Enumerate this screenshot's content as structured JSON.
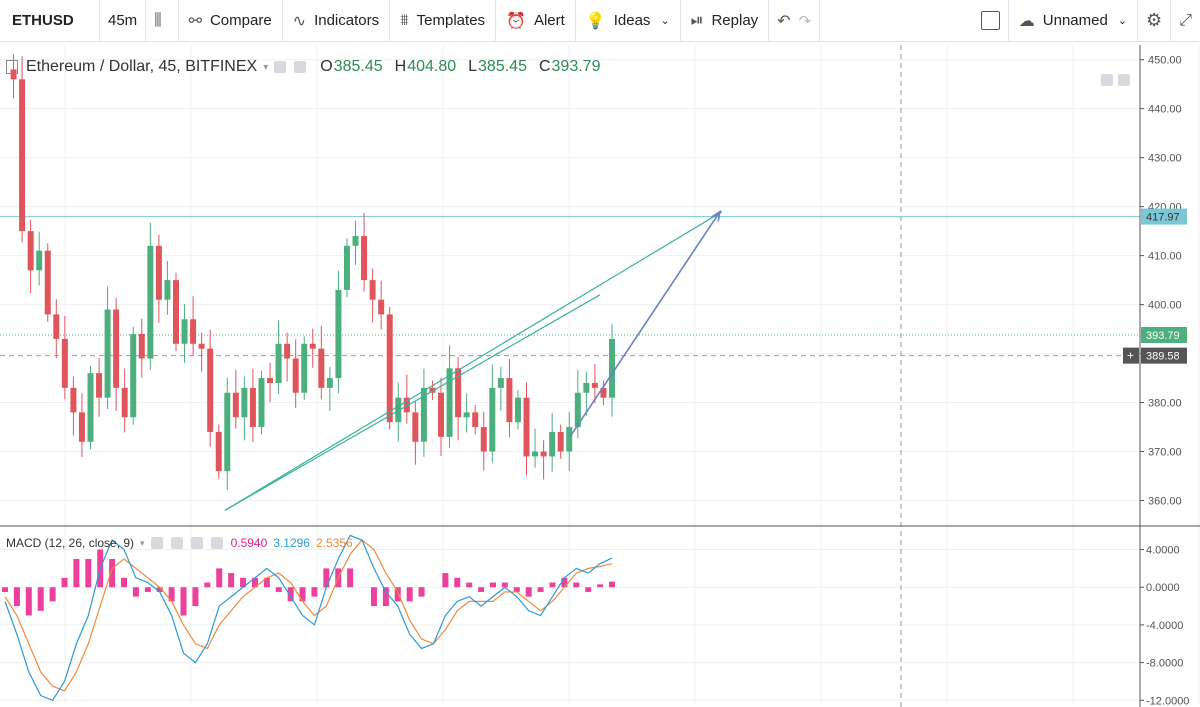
{
  "toolbar": {
    "symbol": "ETHUSD",
    "interval": "45m",
    "compare": "Compare",
    "indicators": "Indicators",
    "templates": "Templates",
    "alert": "Alert",
    "ideas": "Ideas",
    "replay": "Replay",
    "layout_name": "Unnamed"
  },
  "legend": {
    "title": "Ethereum / Dollar, 45, BITFINEX",
    "o_label": "O",
    "o": "385.45",
    "h_label": "H",
    "h": "404.80",
    "l_label": "L",
    "l": "385.45",
    "c_label": "C",
    "c": "393.79"
  },
  "macd_legend": {
    "title": "MACD (12, 26, close, 9)",
    "hist": "0.5940",
    "macd": "3.1296",
    "signal": "2.5356"
  },
  "colors": {
    "up": "#4caf7d",
    "down": "#e0555b",
    "trendline": "#39b39a",
    "arrow": "#6a82c0",
    "hline": "#7cc7d6",
    "macd_line": "#2a9bd6",
    "signal_line": "#f08a3c",
    "hist": "#e91e8c"
  },
  "chart_data": [
    {
      "type": "line",
      "title": "Ethereum / Dollar, 45, BITFINEX",
      "ylim": [
        355,
        453
      ],
      "yticks": [
        "450.00",
        "440.00",
        "430.00",
        "420.00",
        "410.00",
        "400.00",
        "390.00",
        "380.00",
        "370.00",
        "360.00"
      ],
      "price_labels": [
        "417.97",
        "393.79",
        "389.58"
      ],
      "series": [
        {
          "values": [
            448,
            446,
            415,
            407,
            411,
            398,
            393,
            383,
            378,
            372,
            386,
            381,
            399,
            383,
            377,
            394,
            389,
            412,
            401,
            405,
            392,
            397,
            392,
            391,
            374,
            366,
            382,
            377,
            383,
            375,
            385,
            384,
            392,
            389,
            382,
            392,
            391,
            383,
            385,
            403,
            412,
            414,
            405,
            401,
            398,
            376,
            381,
            378,
            372,
            383,
            382,
            373,
            387,
            377,
            378,
            375,
            370,
            383,
            385,
            376,
            381,
            369,
            370,
            369,
            374,
            370,
            375,
            382,
            384,
            383,
            381,
            393
          ]
        }
      ],
      "annotations": {
        "horizontal_line": 417.97,
        "current_price": 393.79,
        "cursor_price": 389.58,
        "trendline": [
          [
            0.225,
            358
          ],
          [
            0.6,
            402
          ]
        ],
        "arrow": [
          [
            0.57,
            373
          ],
          [
            0.72,
            419
          ]
        ]
      }
    },
    {
      "type": "line",
      "title": "MACD (12, 26, close, 9)",
      "ylim": [
        -12.5,
        6.5
      ],
      "yticks": [
        "4.0000",
        "0.0000",
        "-4.0000",
        "-8.0000",
        "-12.0000"
      ],
      "series": [
        {
          "name": "MACD",
          "values": [
            -1.5,
            -5,
            -9,
            -11.5,
            -12,
            -10,
            -6,
            -3,
            2,
            5,
            4,
            1,
            0.5,
            -0.5,
            -3,
            -7,
            -8,
            -6,
            -2,
            -1,
            0,
            1,
            2,
            1,
            -1,
            -3,
            -4,
            0,
            3,
            5.5,
            5,
            2,
            -0.5,
            -2,
            -5,
            -6.5,
            -6,
            -3,
            -1.5,
            -1,
            -2,
            -1,
            0,
            -1,
            -2.5,
            -3,
            -1,
            1,
            2,
            1.5,
            2.5,
            3.1
          ]
        },
        {
          "name": "Signal",
          "values": [
            -1,
            -3,
            -6,
            -9,
            -10.5,
            -11,
            -9,
            -6,
            -2,
            2,
            3,
            2,
            1,
            0,
            -1.5,
            -4,
            -6,
            -6.5,
            -4,
            -2.5,
            -1,
            0,
            1,
            1.5,
            0.5,
            -1.5,
            -3,
            -2,
            1,
            3.5,
            5,
            4,
            1.5,
            -0.5,
            -3.5,
            -5.5,
            -6,
            -4.5,
            -2.5,
            -1.5,
            -1.5,
            -1.5,
            -0.5,
            -0.5,
            -1.5,
            -2.5,
            -1.5,
            0,
            1.5,
            2,
            2.2,
            2.5
          ]
        },
        {
          "name": "Histogram",
          "values": [
            -0.5,
            -2,
            -3,
            -2.5,
            -1.5,
            1,
            3,
            3,
            4,
            3,
            1,
            -1,
            -0.5,
            -0.5,
            -1.5,
            -3,
            -2,
            0.5,
            2,
            1.5,
            1,
            1,
            1,
            -0.5,
            -1.5,
            -1.5,
            -1,
            2,
            2,
            2,
            0,
            -2,
            -2,
            -1.5,
            -1.5,
            -1,
            0,
            1.5,
            1,
            0.5,
            -0.5,
            0.5,
            0.5,
            -0.5,
            -1,
            -0.5,
            0.5,
            1,
            0.5,
            -0.5,
            0.3,
            0.6
          ]
        }
      ]
    }
  ]
}
